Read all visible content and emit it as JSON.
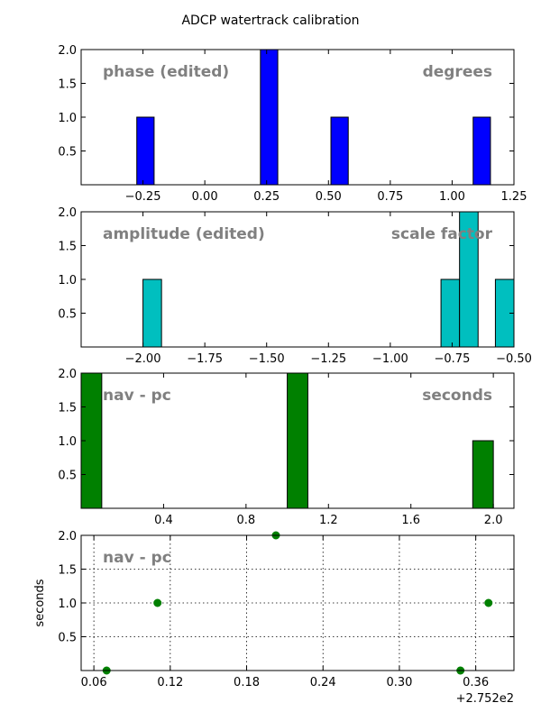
{
  "figure": {
    "title": "ADCP watertrack calibration",
    "offset_text": "+2.752e2"
  },
  "chart_data": [
    {
      "type": "bar",
      "subtype": "histogram",
      "color": "#0000ff",
      "left_label": "phase (edited)",
      "right_label": "degrees",
      "xlim": [
        -0.5,
        1.25
      ],
      "ylim": [
        0,
        2.0
      ],
      "xticks": [
        "-0.25",
        "0.00",
        "0.25",
        "0.50",
        "0.75",
        "1.00",
        "1.25"
      ],
      "yticks": [
        "0.5",
        "1.0",
        "1.5",
        "2.0"
      ],
      "bars": [
        {
          "x0": -0.275,
          "x1": -0.205,
          "value": 1
        },
        {
          "x0": 0.225,
          "x1": 0.295,
          "value": 2
        },
        {
          "x0": 0.51,
          "x1": 0.58,
          "value": 1
        },
        {
          "x0": 1.085,
          "x1": 1.155,
          "value": 1
        }
      ],
      "grid": false
    },
    {
      "type": "bar",
      "subtype": "histogram",
      "color": "#00bfbf",
      "left_label": "amplitude (edited)",
      "right_label": "scale factor",
      "xlim": [
        -2.25,
        -0.5
      ],
      "ylim": [
        0,
        2.0
      ],
      "xticks": [
        "-2.00",
        "-1.75",
        "-1.50",
        "-1.25",
        "-1.00",
        "-0.75",
        "-0.50"
      ],
      "yticks": [
        "0.5",
        "1.0",
        "1.5",
        "2.0"
      ],
      "bars": [
        {
          "x0": -2.0,
          "x1": -1.925,
          "value": 1
        },
        {
          "x0": -0.795,
          "x1": -0.72,
          "value": 1
        },
        {
          "x0": -0.72,
          "x1": -0.645,
          "value": 2
        },
        {
          "x0": -0.575,
          "x1": -0.5,
          "value": 1
        }
      ],
      "grid": false
    },
    {
      "type": "bar",
      "subtype": "histogram",
      "color": "#008000",
      "left_label": "nav - pc",
      "right_label": "seconds",
      "xlim": [
        0.0,
        2.1
      ],
      "ylim": [
        0,
        2.0
      ],
      "xticks": [
        "0.4",
        "0.8",
        "1.2",
        "1.6",
        "2.0"
      ],
      "yticks": [
        "0.5",
        "1.0",
        "1.5",
        "2.0"
      ],
      "bars": [
        {
          "x0": 0.0,
          "x1": 0.1,
          "value": 2
        },
        {
          "x0": 1.0,
          "x1": 1.1,
          "value": 2
        },
        {
          "x0": 1.9,
          "x1": 2.0,
          "value": 1
        }
      ],
      "grid": false
    },
    {
      "type": "scatter",
      "color": "#008000",
      "left_label": "nav - pc",
      "ylabel": "seconds",
      "xlim": [
        0.05,
        0.39
      ],
      "ylim": [
        0,
        2.0
      ],
      "xticks": [
        "0.06",
        "0.12",
        "0.18",
        "0.24",
        "0.30",
        "0.36"
      ],
      "yticks": [
        "0.5",
        "1.0",
        "1.5",
        "2.0"
      ],
      "points": [
        {
          "x": 0.07,
          "y": 0
        },
        {
          "x": 0.11,
          "y": 1
        },
        {
          "x": 0.203,
          "y": 2
        },
        {
          "x": 0.348,
          "y": 0
        },
        {
          "x": 0.37,
          "y": 1
        }
      ],
      "grid": true
    }
  ]
}
